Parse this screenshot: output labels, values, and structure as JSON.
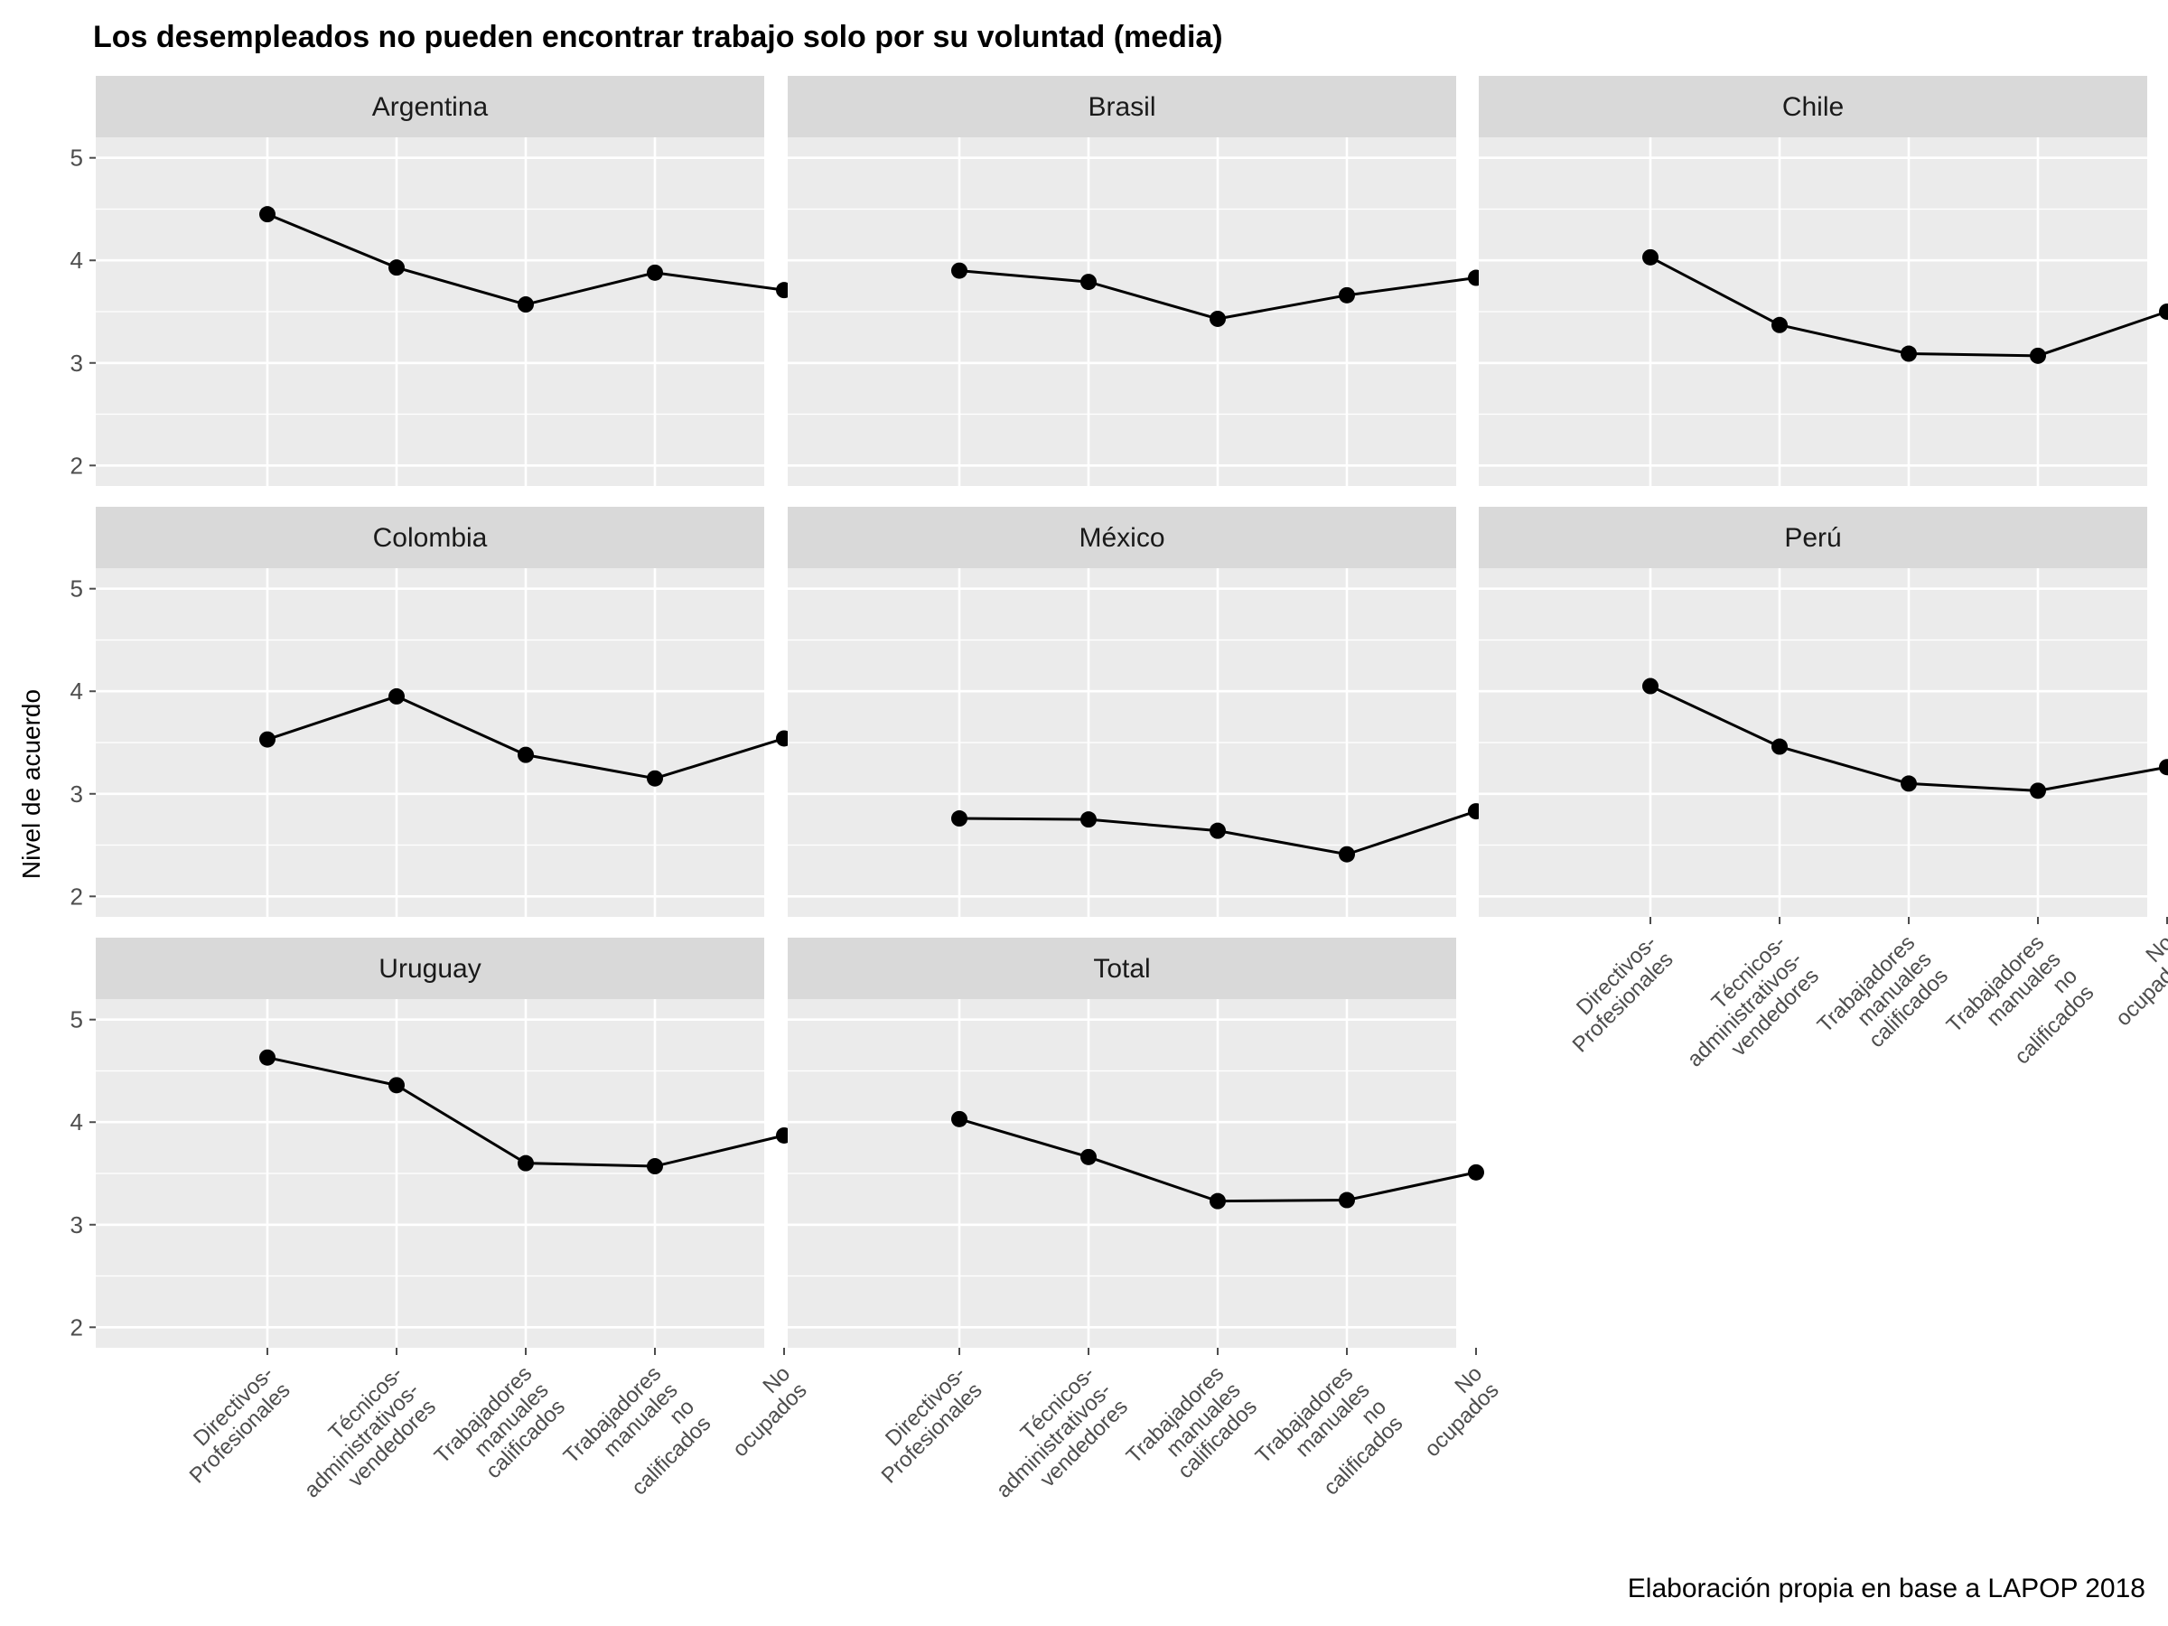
{
  "chart_data": {
    "type": "line",
    "title": "Los desempleados no pueden encontrar trabajo solo por su voluntad (media)",
    "caption": "Elaboración propia en base a LAPOP 2018",
    "xlabel": "",
    "ylabel": "Nivel de acuerdo",
    "ylim": [
      1.8,
      5.2
    ],
    "yticks": [
      "2",
      "3",
      "4",
      "5"
    ],
    "grid": true,
    "categories": [
      "Directivos-\nProfesionales",
      "Técnicos-\nadministrativos-\nvendedores",
      "Trabajadores\nmanuales\ncalificados",
      "Trabajadores\nmanuales\nno\ncalificados",
      "No\nocupados"
    ],
    "panels": [
      {
        "name": "Argentina",
        "values": [
          4.45,
          3.93,
          3.57,
          3.88,
          3.71
        ]
      },
      {
        "name": "Brasil",
        "values": [
          3.9,
          3.79,
          3.43,
          3.66,
          3.83
        ]
      },
      {
        "name": "Chile",
        "values": [
          4.03,
          3.37,
          3.09,
          3.07,
          3.5
        ]
      },
      {
        "name": "Colombia",
        "values": [
          3.53,
          3.95,
          3.38,
          3.15,
          3.54
        ]
      },
      {
        "name": "México",
        "values": [
          2.76,
          2.75,
          2.64,
          2.41,
          2.83
        ]
      },
      {
        "name": "Perú",
        "values": [
          4.05,
          3.46,
          3.1,
          3.03,
          3.26
        ]
      },
      {
        "name": "Uruguay",
        "values": [
          4.63,
          4.36,
          3.6,
          3.57,
          3.87
        ]
      },
      {
        "name": "Total",
        "values": [
          4.03,
          3.66,
          3.23,
          3.24,
          3.51
        ]
      }
    ]
  },
  "colors": {
    "panel_bg": "#ebebeb",
    "strip_bg": "#d9d9d9",
    "grid": "#ffffff",
    "line": "#000000",
    "point": "#000000",
    "tick": "#4d4d4d"
  }
}
